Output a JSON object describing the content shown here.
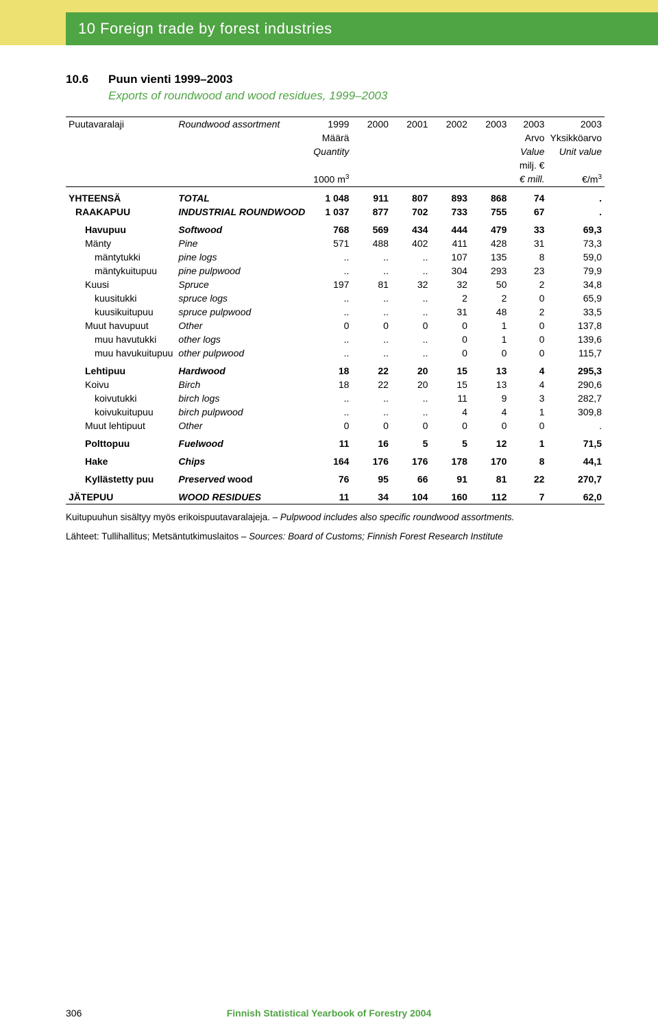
{
  "header": {
    "title": "10 Foreign trade by forest industries"
  },
  "table": {
    "number": "10.6",
    "title_fi": "Puun vienti 1999–2003",
    "title_en": "Exports of roundwood and wood residues, 1999–2003",
    "col_headers": {
      "c0_fi": "Puutavaralaji",
      "c0_en": "Roundwood assortment",
      "y1999": "1999",
      "y2000": "2000",
      "y2001": "2001",
      "y2002": "2002",
      "y2003": "2003",
      "y2003b": "2003",
      "y2003c": "2003",
      "maara": "Määrä",
      "arvo": "Arvo",
      "yksikko": "Yksikköarvo",
      "quantity": "Quantity",
      "value": "Value",
      "unitvalue": "Unit value",
      "milj": "milj. €",
      "thousand_m3": "1000 m",
      "emill": "€ mill.",
      "eperm3": "€/m"
    },
    "rows": [
      {
        "l0": "YHTEENSÄ",
        "l1": "TOTAL",
        "v": [
          "1 048",
          "911",
          "807",
          "893",
          "868",
          "74",
          "."
        ],
        "cls": "bd",
        "it1": true,
        "gap": true
      },
      {
        "l0": "RAAKAPUU",
        "l1": "INDUSTRIAL ROUNDWOOD",
        "v": [
          "1 037",
          "877",
          "702",
          "733",
          "755",
          "67",
          "."
        ],
        "cls": "bd",
        "it1": true,
        "ind": 1
      },
      {
        "l0": "Havupuu",
        "l1": "Softwood",
        "v": [
          "768",
          "569",
          "434",
          "444",
          "479",
          "33",
          "69,3"
        ],
        "cls": "bd",
        "it1": true,
        "ind": 2,
        "gap": true
      },
      {
        "l0": "Mänty",
        "l1": "Pine",
        "v": [
          "571",
          "488",
          "402",
          "411",
          "428",
          "31",
          "73,3"
        ],
        "it1": true,
        "ind": 2
      },
      {
        "l0": "mäntytukki",
        "l1": "pine logs",
        "v": [
          "..",
          "..",
          "..",
          "107",
          "135",
          "8",
          "59,0"
        ],
        "it1": true,
        "ind": 3
      },
      {
        "l0": "mäntykuitupuu",
        "l1": "pine pulpwood",
        "v": [
          "..",
          "..",
          "..",
          "304",
          "293",
          "23",
          "79,9"
        ],
        "it1": true,
        "ind": 3
      },
      {
        "l0": "Kuusi",
        "l1": "Spruce",
        "v": [
          "197",
          "81",
          "32",
          "32",
          "50",
          "2",
          "34,8"
        ],
        "it1": true,
        "ind": 2
      },
      {
        "l0": "kuusitukki",
        "l1": "spruce logs",
        "v": [
          "..",
          "..",
          "..",
          "2",
          "2",
          "0",
          "65,9"
        ],
        "it1": true,
        "ind": 3
      },
      {
        "l0": "kuusikuitupuu",
        "l1": "spruce pulpwood",
        "v": [
          "..",
          "..",
          "..",
          "31",
          "48",
          "2",
          "33,5"
        ],
        "it1": true,
        "ind": 3
      },
      {
        "l0": "Muut havupuut",
        "l1": "Other",
        "v": [
          "0",
          "0",
          "0",
          "0",
          "1",
          "0",
          "137,8"
        ],
        "it1": true,
        "ind": 2
      },
      {
        "l0": "muu havutukki",
        "l1": "other logs",
        "v": [
          "..",
          "..",
          "..",
          "0",
          "1",
          "0",
          "139,6"
        ],
        "it1": true,
        "ind": 3
      },
      {
        "l0": "muu havukuitupuu",
        "l1": "other pulpwood",
        "v": [
          "..",
          "..",
          "..",
          "0",
          "0",
          "0",
          "115,7"
        ],
        "it1": true,
        "ind": 3
      },
      {
        "l0": "Lehtipuu",
        "l1": "Hardwood",
        "v": [
          "18",
          "22",
          "20",
          "15",
          "13",
          "4",
          "295,3"
        ],
        "cls": "bd",
        "it1": true,
        "ind": 2,
        "gap": true
      },
      {
        "l0": "Koivu",
        "l1": "Birch",
        "v": [
          "18",
          "22",
          "20",
          "15",
          "13",
          "4",
          "290,6"
        ],
        "it1": true,
        "ind": 2
      },
      {
        "l0": "koivutukki",
        "l1": "birch logs",
        "v": [
          "..",
          "..",
          "..",
          "11",
          "9",
          "3",
          "282,7"
        ],
        "it1": true,
        "ind": 3
      },
      {
        "l0": "koivukuitupuu",
        "l1": "birch pulpwood",
        "v": [
          "..",
          "..",
          "..",
          "4",
          "4",
          "1",
          "309,8"
        ],
        "it1": true,
        "ind": 3
      },
      {
        "l0": "Muut lehtipuut",
        "l1": "Other",
        "v": [
          "0",
          "0",
          "0",
          "0",
          "0",
          "0",
          "."
        ],
        "it1": true,
        "ind": 2
      },
      {
        "l0": "Polttopuu",
        "l1": "Fuelwood",
        "v": [
          "11",
          "16",
          "5",
          "5",
          "12",
          "1",
          "71,5"
        ],
        "cls": "bd",
        "it1": true,
        "ind": 2,
        "gap": true
      },
      {
        "l0": "Hake",
        "l1": "Chips",
        "v": [
          "164",
          "176",
          "176",
          "178",
          "170",
          "8",
          "44,1"
        ],
        "cls": "bd",
        "it1": true,
        "ind": 2,
        "gap": true
      },
      {
        "l0": "Kyllästetty puu",
        "l1": "Preserved wood",
        "v": [
          "76",
          "95",
          "66",
          "91",
          "81",
          "22",
          "270,7"
        ],
        "cls": "bd",
        "it1": true,
        "ind": 2,
        "gap": true,
        "l1mixed": true
      },
      {
        "l0": "JÄTEPUU",
        "l1": "WOOD RESIDUES",
        "v": [
          "11",
          "34",
          "104",
          "160",
          "112",
          "7",
          "62,0"
        ],
        "cls": "bd",
        "it1": true,
        "gap": true
      }
    ],
    "footnote1_fi": "Kuitupuuhun sisältyy myös erikoispuutavaralajeja. – ",
    "footnote1_en": "Pulpwood includes also specific roundwood assortments.",
    "footnote2_fi": "Lähteet: Tullihallitus; Metsäntutkimuslaitos – ",
    "footnote2_en": "Sources: Board of Customs;  Finnish Forest Research Institute"
  },
  "footer": {
    "page": "306",
    "pub": "Finnish Statistical Yearbook of Forestry 2004"
  },
  "colors": {
    "green": "#4fa444",
    "yellow": "#ede171"
  }
}
